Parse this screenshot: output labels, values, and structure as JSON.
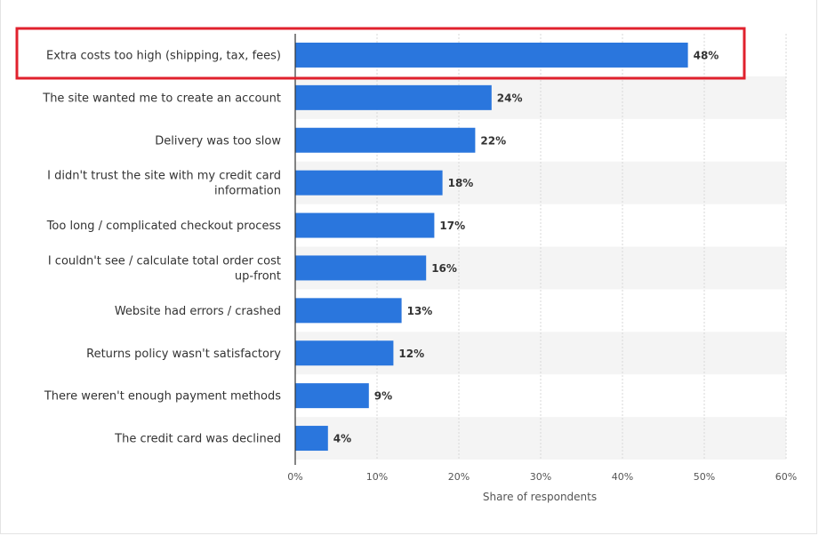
{
  "chart_data": {
    "type": "bar",
    "orientation": "horizontal",
    "categories": [
      [
        "Extra costs too high (shipping, tax, fees)"
      ],
      [
        "The site wanted me to create an account"
      ],
      [
        "Delivery was too slow"
      ],
      [
        "I didn't trust the site with my credit card",
        "information"
      ],
      [
        "Too long / complicated checkout process"
      ],
      [
        "I couldn't see / calculate total order cost",
        "up-front"
      ],
      [
        "Website had errors / crashed"
      ],
      [
        "Returns policy wasn't satisfactory"
      ],
      [
        "There weren't enough payment methods"
      ],
      [
        "The credit card was declined"
      ]
    ],
    "values": [
      48,
      24,
      22,
      18,
      17,
      16,
      13,
      12,
      9,
      4
    ],
    "value_labels": [
      "48%",
      "24%",
      "22%",
      "18%",
      "17%",
      "16%",
      "13%",
      "12%",
      "9%",
      "4%"
    ],
    "xlim": [
      0,
      60
    ],
    "xticks": [
      0,
      10,
      20,
      30,
      40,
      50,
      60
    ],
    "xtick_labels": [
      "0%",
      "10%",
      "20%",
      "30%",
      "40%",
      "50%",
      "60%"
    ],
    "xlabel": "Share of respondents",
    "ylabel": "",
    "title": "",
    "grid": true,
    "legend": "none",
    "highlighted_category_index": 0,
    "colors": {
      "bar": "#2a76dd",
      "highlight_box": "#e0212d",
      "grid": "#d7d7d7",
      "band": "#f4f4f4"
    }
  }
}
